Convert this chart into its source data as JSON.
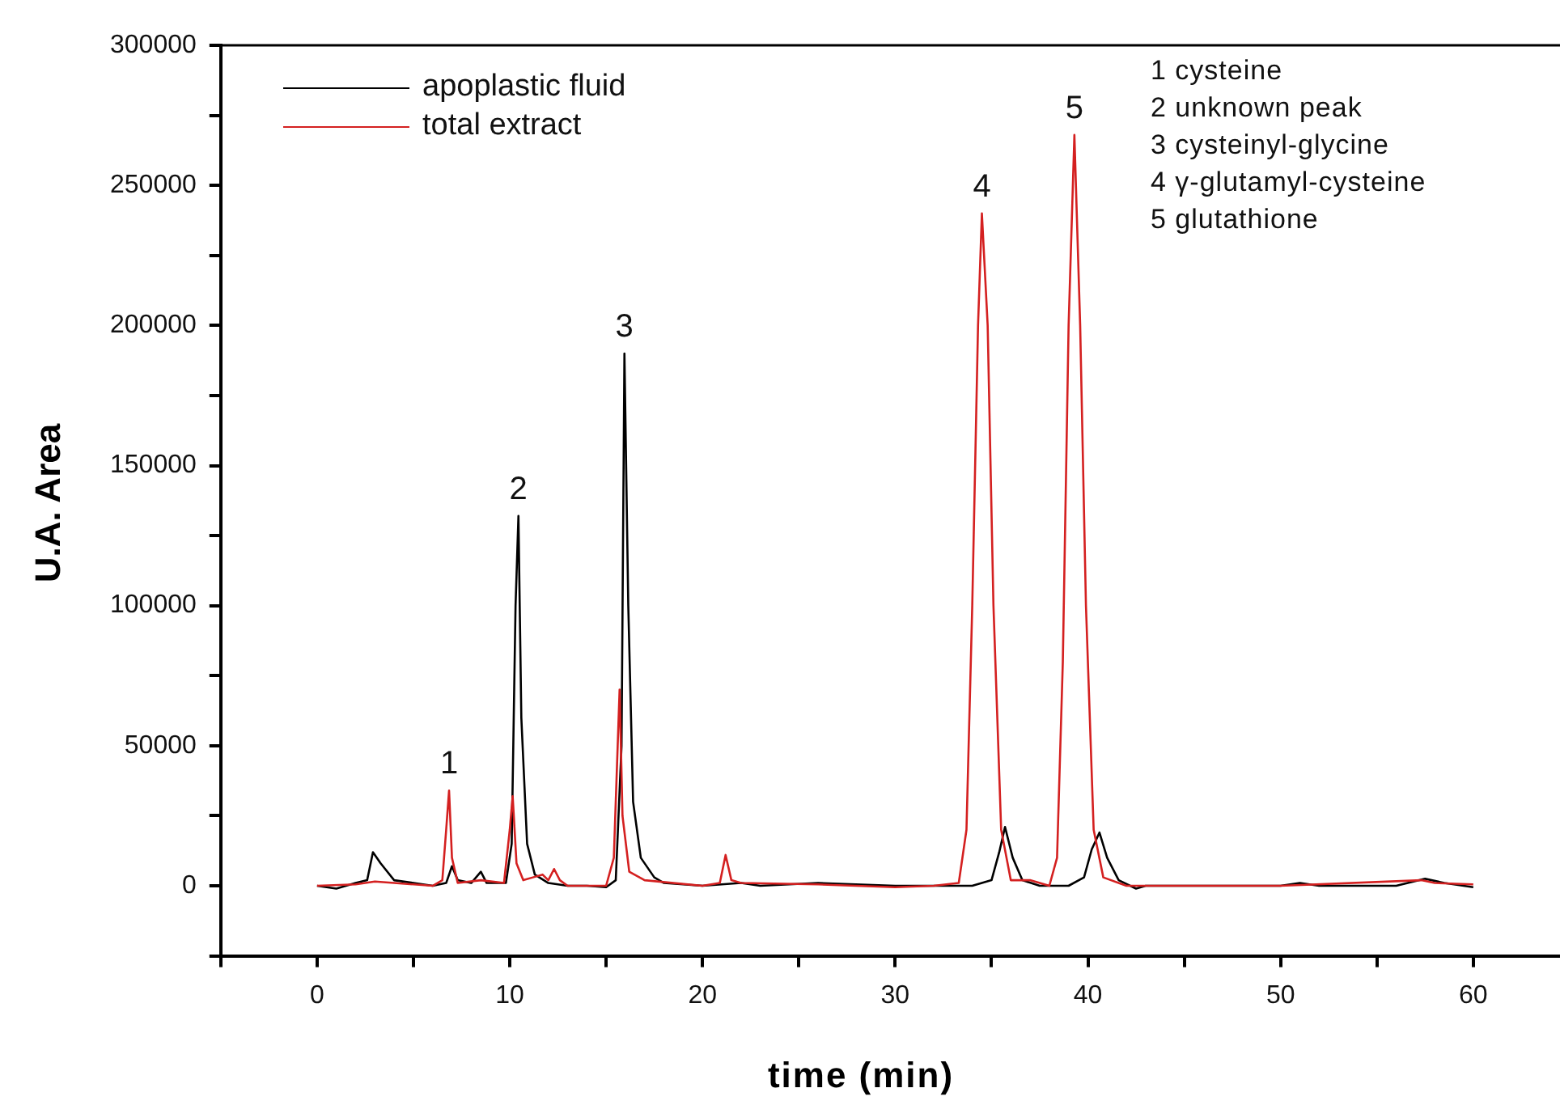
{
  "chart_data": {
    "type": "line",
    "xlabel": "time (min)",
    "ylabel": "U.A. Area",
    "xlim": [
      -5,
      64.5
    ],
    "ylim": [
      -25000,
      300000
    ],
    "xticks": [
      {
        "value": -5,
        "label": null
      },
      0,
      {
        "value": 5,
        "label": null
      },
      10,
      {
        "value": 15,
        "label": null
      },
      20,
      {
        "value": 25,
        "label": null
      },
      30,
      {
        "value": 35,
        "label": null
      },
      40,
      {
        "value": 45,
        "label": null
      },
      50,
      {
        "value": 55,
        "label": null
      },
      60
    ],
    "yticks": [
      {
        "value": -25000,
        "label": null
      },
      0,
      {
        "value": 25000,
        "label": null
      },
      50000,
      {
        "value": 75000,
        "label": null
      },
      100000,
      {
        "value": 125000,
        "label": null
      },
      150000,
      {
        "value": 175000,
        "label": null
      },
      200000,
      {
        "value": 225000,
        "label": null
      },
      250000,
      {
        "value": 275000,
        "label": null
      },
      300000
    ],
    "grid": false,
    "legend": "top left",
    "marker": "none",
    "line_style": "solid",
    "series": [
      {
        "name": "apoplastic fluid",
        "color": "#000000",
        "x": [
          0,
          1,
          2,
          2.6,
          2.9,
          3.3,
          4,
          5,
          6,
          6.7,
          7.0,
          7.3,
          8,
          8.5,
          8.8,
          9.8,
          10.1,
          10.3,
          10.45,
          10.6,
          10.9,
          11.3,
          12,
          13,
          14,
          15,
          15.5,
          15.8,
          15.95,
          16.15,
          16.4,
          16.8,
          17.5,
          18,
          20,
          22,
          23,
          26,
          30,
          34,
          35.0,
          35.4,
          35.7,
          36.1,
          36.6,
          37.5,
          39,
          39.8,
          40.2,
          40.6,
          41.0,
          41.6,
          42.5,
          43,
          50,
          51,
          52,
          56,
          57.5,
          58.5,
          60
        ],
        "values": [
          0,
          -1000,
          1000,
          2000,
          12000,
          8000,
          2000,
          1000,
          0,
          1000,
          7000,
          2000,
          1000,
          5000,
          1000,
          1000,
          15000,
          100000,
          132000,
          60000,
          15000,
          4000,
          1000,
          0,
          0,
          -500,
          2000,
          50000,
          190000,
          100000,
          30000,
          10000,
          3000,
          1000,
          0,
          1000,
          0,
          1000,
          0,
          0,
          2000,
          12000,
          21000,
          10000,
          2000,
          0,
          0,
          3000,
          13000,
          19000,
          10000,
          2000,
          -1000,
          0,
          0,
          1000,
          0,
          0,
          2500,
          1000,
          -500
        ]
      },
      {
        "name": "total extract",
        "color": "#d42020",
        "x": [
          0,
          2,
          3,
          4,
          6,
          6.5,
          6.7,
          6.85,
          7.0,
          7.3,
          8.5,
          9.7,
          10.0,
          10.15,
          10.35,
          10.7,
          11.2,
          11.7,
          12.0,
          12.3,
          12.6,
          13,
          15,
          15.4,
          15.6,
          15.7,
          15.85,
          16.2,
          17,
          20,
          20.9,
          21.2,
          21.5,
          22,
          26,
          30,
          32,
          33.3,
          33.7,
          34.0,
          34.3,
          34.5,
          34.8,
          35.1,
          35.5,
          36,
          37,
          38,
          38.4,
          38.7,
          39.0,
          39.3,
          39.6,
          39.9,
          40.3,
          40.8,
          42,
          50,
          57.3,
          58,
          60
        ],
        "values": [
          0,
          500,
          1500,
          1000,
          0,
          2000,
          20000,
          34000,
          10000,
          1000,
          2000,
          1000,
          20000,
          32000,
          8000,
          2000,
          3000,
          4000,
          2000,
          6000,
          2000,
          0,
          0,
          10000,
          50000,
          70000,
          25000,
          5000,
          2000,
          0,
          1000,
          11000,
          2000,
          1000,
          500,
          -500,
          0,
          1000,
          20000,
          100000,
          200000,
          240000,
          200000,
          100000,
          20000,
          2000,
          2000,
          0,
          10000,
          80000,
          200000,
          268000,
          200000,
          100000,
          20000,
          3000,
          0,
          0,
          2000,
          1000,
          500
        ]
      }
    ],
    "annotations": [
      {
        "text": "1",
        "x": 6.85,
        "y": 34000
      },
      {
        "text": "2",
        "x": 10.45,
        "y": 132000
      },
      {
        "text": "3",
        "x": 15.95,
        "y": 190000
      },
      {
        "text": "4",
        "x": 34.5,
        "y": 240000
      },
      {
        "text": "5",
        "x": 39.3,
        "y": 268000
      },
      "1 cysteine\n2 unknown peak\n3 cysteinyl-glycine\n4 γ-glutamyl-cysteine\n5 glutathione"
    ]
  }
}
